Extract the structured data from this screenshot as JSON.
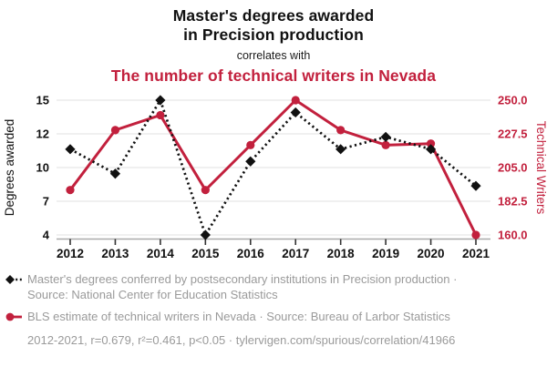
{
  "header": {
    "title": "Master's degrees awarded\nin Precision production",
    "connector": "correlates with",
    "subtitle": "The number of technical writers in Nevada"
  },
  "colors": {
    "accent_red": "#c2203d",
    "series_black": "#111111",
    "legend_text": "#9a9a9a",
    "gridline": "#e8e8e8",
    "axis_line": "#aaaaaa",
    "tick_mark": "#333333"
  },
  "chart_data": {
    "type": "line",
    "x": [
      2012,
      2013,
      2014,
      2015,
      2016,
      2017,
      2018,
      2019,
      2020,
      2021
    ],
    "x_ticks": [
      "2012",
      "2013",
      "2014",
      "2015",
      "2016",
      "2017",
      "2018",
      "2019",
      "2020",
      "2021"
    ],
    "series": [
      {
        "name": "Master's degrees awarded in Precision production",
        "axis": "left",
        "style": "dotted",
        "marker": "diamond",
        "color": "#111111",
        "values": [
          11,
          9,
          15,
          4,
          10,
          14,
          11,
          12,
          11,
          8
        ]
      },
      {
        "name": "The number of technical writers in Nevada",
        "axis": "right",
        "style": "solid",
        "marker": "circle",
        "color": "#c2203d",
        "values": [
          190,
          230,
          240,
          190,
          220,
          250,
          230,
          220,
          221,
          160
        ]
      }
    ],
    "left_axis": {
      "label": "Degrees awarded",
      "min": 4,
      "max": 15,
      "tick_labels": [
        "15",
        "12",
        "10",
        "7",
        "4"
      ]
    },
    "right_axis": {
      "label": "Technical Writers",
      "min": 160,
      "max": 250,
      "tick_labels": [
        "250.0",
        "227.5",
        "205.0",
        "182.5",
        "160.0"
      ]
    },
    "grid": "horizontal",
    "legend_position": "bottom"
  },
  "legend": {
    "items": [
      {
        "label": "Master's degrees conferred by postsecondary institutions in Precision production · Source: National Center for Education Statistics"
      },
      {
        "label": "BLS estimate of technical writers in Nevada · Source: Bureau of Larbor Statistics"
      }
    ]
  },
  "footer": {
    "text": "2012-2021, r=0.679, r²=0.461, p<0.05 · tylervigen.com/spurious/correlation/41966"
  }
}
